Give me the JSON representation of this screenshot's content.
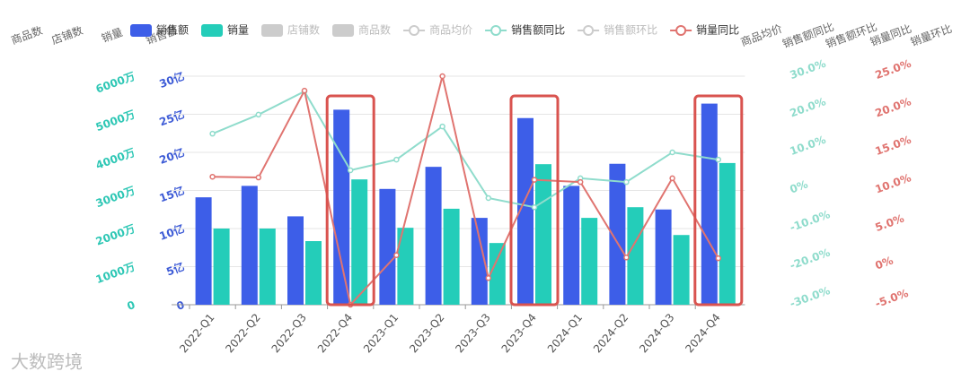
{
  "chart_data": {
    "type": "bar-line",
    "categories": [
      "2022-Q1",
      "2022-Q2",
      "2022-Q3",
      "2022-Q4",
      "2023-Q1",
      "2023-Q2",
      "2023-Q3",
      "2023-Q4",
      "2024-Q1",
      "2024-Q2",
      "2024-Q3",
      "2024-Q4"
    ],
    "axes": [
      {
        "name": "商品数"
      },
      {
        "name": "店铺数"
      },
      {
        "name": "销量",
        "color": "#2ec7b5",
        "ylim": [
          0,
          6000
        ],
        "yticks": [
          0,
          {
            "value": 1000,
            "label": "1000万"
          },
          {
            "value": 2000,
            "label": "2000万"
          },
          {
            "value": 3000,
            "label": "3000万"
          },
          {
            "value": 4000,
            "label": "4000万"
          },
          {
            "value": 5000,
            "label": "5000万"
          },
          {
            "value": 6000,
            "label": "6000万"
          }
        ]
      },
      {
        "name": "销售额",
        "color": "#3d5bd6",
        "ylim": [
          0,
          30
        ],
        "grid": true,
        "yticks": [
          0,
          {
            "value": 5,
            "label": "5亿"
          },
          {
            "value": 10,
            "label": "10亿"
          },
          {
            "value": 15,
            "label": "15亿"
          },
          {
            "value": 20,
            "label": "20亿"
          },
          {
            "value": 25,
            "label": "25亿"
          },
          {
            "value": 30,
            "label": "30亿"
          }
        ]
      },
      {
        "name": "商品均价"
      },
      {
        "name": "销售额同比",
        "color": "#8fdccc",
        "ylim": [
          -30,
          30
        ],
        "yticks": [
          {
            "value": -30,
            "label": "-30.0%"
          },
          {
            "value": -20,
            "label": "-20.0%"
          },
          {
            "value": -10,
            "label": "-10.0%"
          },
          {
            "value": 0,
            "label": "0%"
          },
          {
            "value": 10,
            "label": "10.0%"
          },
          {
            "value": 20,
            "label": "20.0%"
          },
          {
            "value": 30,
            "label": "30.0%"
          }
        ]
      },
      {
        "name": "销售额环比"
      },
      {
        "name": "销量同比",
        "color": "#e07470",
        "ylim": [
          -5,
          25
        ],
        "yticks": [
          {
            "value": -5,
            "label": "-5.0%"
          },
          {
            "value": 0,
            "label": "0%"
          },
          {
            "value": 5,
            "label": "5.0%"
          },
          {
            "value": 10,
            "label": "10.0%"
          },
          {
            "value": 15,
            "label": "15.0%"
          },
          {
            "value": 20,
            "label": "20.0%"
          },
          {
            "value": 25,
            "label": "25.0%"
          }
        ]
      },
      {
        "name": "销量环比"
      }
    ],
    "series": [
      {
        "name": "销售额",
        "type": "bar",
        "color": "#3d5ee8",
        "axis": 3,
        "values": [
          14.1,
          15.6,
          11.6,
          25.6,
          15.2,
          18.1,
          11.4,
          24.5,
          15.6,
          18.5,
          12.5,
          26.4
        ]
      },
      {
        "name": "销量",
        "type": "bar",
        "color": "#24cdb9",
        "axis": 2,
        "values": [
          2000,
          2000,
          1670,
          3290,
          2020,
          2520,
          1620,
          3690,
          2280,
          2560,
          1830,
          3720
        ]
      },
      {
        "name": "店铺数",
        "type": "bar",
        "color": "#cccccc",
        "hidden": true
      },
      {
        "name": "商品数",
        "type": "bar",
        "color": "#cccccc",
        "hidden": true
      },
      {
        "name": "商品均价",
        "type": "line",
        "color": "#cccccc",
        "hidden": true
      },
      {
        "name": "销售额同比",
        "type": "line",
        "color": "#8fdccc",
        "axis": 5,
        "values": [
          14.9,
          19.9,
          26.0,
          5.3,
          8.1,
          16.8,
          -2.0,
          -4.4,
          3.2,
          2.2,
          10.0,
          8.1
        ]
      },
      {
        "name": "销售额环比",
        "type": "line",
        "color": "#cccccc",
        "hidden": true
      },
      {
        "name": "销量同比",
        "type": "line",
        "color": "#e07470",
        "axis": 7,
        "values": [
          11.8,
          11.7,
          23.1,
          -5.0,
          1.5,
          25.0,
          -1.5,
          11.4,
          11.1,
          1.2,
          11.6,
          1.1
        ]
      }
    ],
    "watermark": "大数跨境"
  }
}
